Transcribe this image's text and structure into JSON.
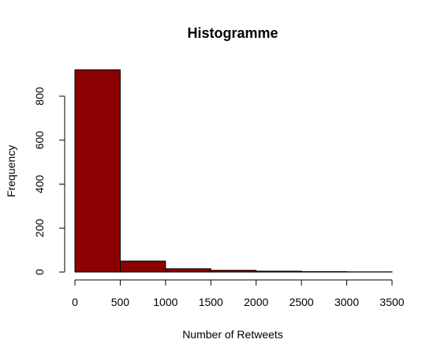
{
  "chart_data": {
    "type": "bar",
    "title": "Histogramme",
    "xlabel": "Number of Retweets",
    "ylabel": "Frequency",
    "bin_edges": [
      0,
      500,
      1000,
      1500,
      2000,
      2500,
      3000,
      3500
    ],
    "values": [
      920,
      50,
      15,
      8,
      4,
      2,
      1
    ],
    "xlim": [
      0,
      3500
    ],
    "ylim": [
      0,
      940
    ],
    "x_ticks": [
      "0",
      "500",
      "1000",
      "1500",
      "2000",
      "2500",
      "3000",
      "3500"
    ],
    "x_tick_values": [
      0,
      500,
      1000,
      1500,
      2000,
      2500,
      3000,
      3500
    ],
    "y_ticks": [
      "0",
      "200",
      "400",
      "600",
      "800"
    ],
    "y_tick_values": [
      0,
      200,
      400,
      600,
      800
    ],
    "grid": false,
    "legend": "none",
    "bar_color": "#8B0000"
  }
}
